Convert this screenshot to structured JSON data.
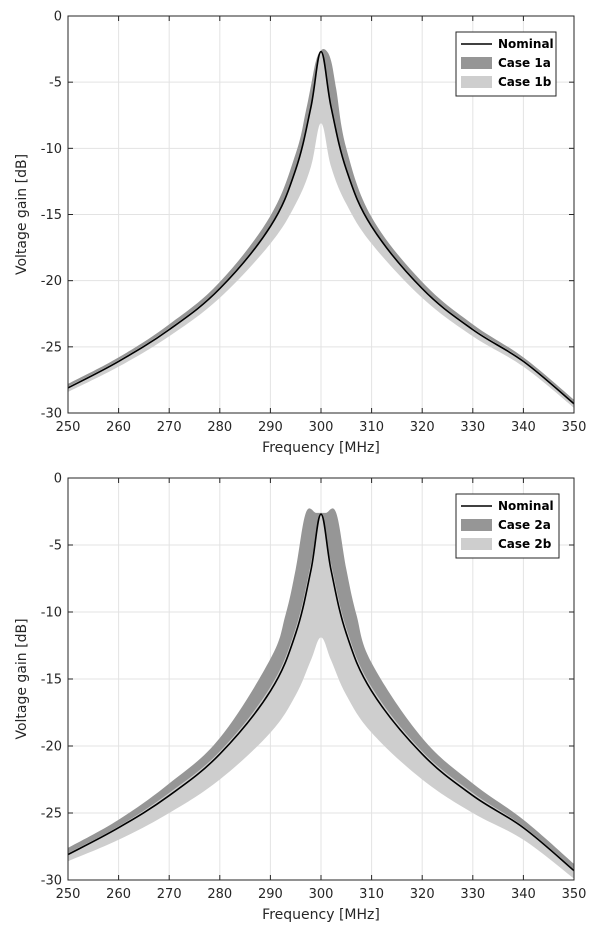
{
  "chart_data": [
    {
      "type": "line",
      "title": "",
      "xlabel": "Frequency [MHz]",
      "ylabel": "Voltage gain [dB]",
      "xlim": [
        250,
        350
      ],
      "ylim": [
        -30,
        0
      ],
      "xticks": [
        250,
        260,
        270,
        280,
        290,
        300,
        310,
        320,
        330,
        340,
        350
      ],
      "yticks": [
        0,
        -5,
        -10,
        -15,
        -20,
        -25,
        -30
      ],
      "grid": true,
      "legend_position": "top-right",
      "series": [
        {
          "name": "Nominal",
          "kind": "line",
          "color": "#000000",
          "x": [
            250,
            260,
            270,
            280,
            290,
            295,
            298,
            300,
            302,
            305,
            310,
            320,
            330,
            340,
            350
          ],
          "y": [
            -28.1,
            -26.1,
            -23.7,
            -20.6,
            -15.9,
            -11.6,
            -6.9,
            -2.7,
            -6.9,
            -11.6,
            -15.9,
            -20.6,
            -23.7,
            -26.1,
            -29.3
          ]
        },
        {
          "name": "Case 1a",
          "kind": "band",
          "color": "#969696",
          "x": [
            250,
            260,
            270,
            280,
            290,
            295,
            297,
            298,
            299,
            300,
            301,
            302,
            303,
            305,
            310,
            320,
            330,
            340,
            350
          ],
          "upper": [
            -27.8,
            -25.8,
            -23.3,
            -20.1,
            -15.1,
            -10.4,
            -7.2,
            -5.3,
            -3.4,
            -2.6,
            -2.6,
            -3.4,
            -5.5,
            -10.0,
            -15.2,
            -20.1,
            -23.3,
            -25.8,
            -29.0
          ],
          "lower": [
            -28.4,
            -26.4,
            -24.0,
            -21.1,
            -16.6,
            -12.8,
            -10.8,
            -9.2,
            -6.9,
            -4.6,
            -6.9,
            -9.2,
            -10.8,
            -12.8,
            -16.6,
            -21.1,
            -24.0,
            -26.4,
            -29.6
          ]
        },
        {
          "name": "Case 1b",
          "kind": "band",
          "color": "#cecece",
          "x": [
            250,
            260,
            270,
            280,
            290,
            295,
            298,
            300,
            302,
            305,
            310,
            320,
            330,
            340,
            350
          ],
          "upper": [
            -28.0,
            -26.0,
            -23.6,
            -20.5,
            -15.8,
            -11.5,
            -6.8,
            -2.7,
            -6.8,
            -11.5,
            -15.8,
            -20.5,
            -23.6,
            -26.0,
            -29.2
          ],
          "lower": [
            -28.4,
            -26.5,
            -24.2,
            -21.3,
            -17.2,
            -14.2,
            -11.4,
            -8.1,
            -11.4,
            -14.2,
            -17.2,
            -21.3,
            -24.2,
            -26.5,
            -29.6
          ]
        }
      ]
    },
    {
      "type": "line",
      "title": "",
      "xlabel": "Frequency [MHz]",
      "ylabel": "Voltage gain [dB]",
      "xlim": [
        250,
        350
      ],
      "ylim": [
        -30,
        0
      ],
      "xticks": [
        250,
        260,
        270,
        280,
        290,
        300,
        310,
        320,
        330,
        340,
        350
      ],
      "yticks": [
        0,
        -5,
        -10,
        -15,
        -20,
        -25,
        -30
      ],
      "grid": true,
      "legend_position": "top-right",
      "series": [
        {
          "name": "Nominal",
          "kind": "line",
          "color": "#000000",
          "x": [
            250,
            260,
            270,
            280,
            290,
            295,
            298,
            300,
            302,
            305,
            310,
            320,
            330,
            340,
            350
          ],
          "y": [
            -28.1,
            -26.1,
            -23.7,
            -20.6,
            -15.9,
            -11.6,
            -6.9,
            -2.7,
            -6.9,
            -11.6,
            -15.9,
            -20.6,
            -23.7,
            -26.1,
            -29.3
          ]
        },
        {
          "name": "Case 2a",
          "kind": "band",
          "color": "#969696",
          "x": [
            250,
            260,
            270,
            280,
            290,
            293,
            295,
            297,
            299,
            300,
            301,
            303,
            305,
            307,
            310,
            320,
            330,
            340,
            350
          ],
          "upper": [
            -27.6,
            -25.5,
            -22.8,
            -19.4,
            -13.5,
            -10.2,
            -6.8,
            -2.6,
            -2.6,
            -2.6,
            -2.6,
            -2.6,
            -6.8,
            -10.2,
            -13.8,
            -19.4,
            -22.8,
            -25.5,
            -28.8
          ],
          "lower": [
            -28.6,
            -26.7,
            -24.5,
            -21.6,
            -17.5,
            -15.3,
            -13.0,
            -11.0,
            -9.0,
            -8.0,
            -9.0,
            -11.0,
            -13.0,
            -15.3,
            -17.5,
            -21.6,
            -24.5,
            -26.7,
            -29.8
          ]
        },
        {
          "name": "Case 2b",
          "kind": "band",
          "color": "#cecece",
          "x": [
            250,
            260,
            270,
            280,
            290,
            295,
            298,
            300,
            302,
            305,
            310,
            320,
            330,
            340,
            350
          ],
          "upper": [
            -28.0,
            -26.0,
            -23.5,
            -20.4,
            -15.6,
            -11.2,
            -6.4,
            -2.7,
            -6.4,
            -11.2,
            -15.6,
            -20.4,
            -23.5,
            -26.0,
            -29.2
          ],
          "lower": [
            -28.6,
            -27.0,
            -25.0,
            -22.5,
            -19.0,
            -16.2,
            -13.6,
            -11.9,
            -13.6,
            -16.2,
            -19.0,
            -22.5,
            -25.0,
            -27.0,
            -29.9
          ]
        }
      ]
    }
  ]
}
